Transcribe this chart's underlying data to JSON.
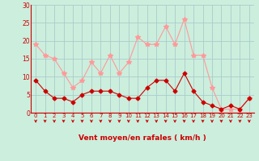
{
  "x": [
    0,
    1,
    2,
    3,
    4,
    5,
    6,
    7,
    8,
    9,
    10,
    11,
    12,
    13,
    14,
    15,
    16,
    17,
    18,
    19,
    20,
    21,
    22,
    23
  ],
  "wind_avg": [
    9,
    6,
    4,
    4,
    3,
    5,
    6,
    6,
    6,
    5,
    4,
    4,
    7,
    9,
    9,
    6,
    11,
    6,
    3,
    2,
    1,
    2,
    1,
    4
  ],
  "wind_gust": [
    19,
    16,
    15,
    11,
    7,
    9,
    14,
    11,
    16,
    11,
    14,
    21,
    19,
    19,
    24,
    19,
    26,
    16,
    16,
    7,
    1,
    1,
    1,
    4
  ],
  "avg_color": "#cc0000",
  "gust_color": "#ff9999",
  "bg_color": "#cceedd",
  "grid_color": "#aacccc",
  "xlabel": "Vent moyen/en rafales ( km/h )",
  "ylim": [
    0,
    30
  ],
  "xlim_min": -0.5,
  "xlim_max": 23.5,
  "yticks": [
    0,
    5,
    10,
    15,
    20,
    25,
    30
  ],
  "xticks": [
    0,
    1,
    2,
    3,
    4,
    5,
    6,
    7,
    8,
    9,
    10,
    11,
    12,
    13,
    14,
    15,
    16,
    17,
    18,
    19,
    20,
    21,
    22,
    23
  ]
}
